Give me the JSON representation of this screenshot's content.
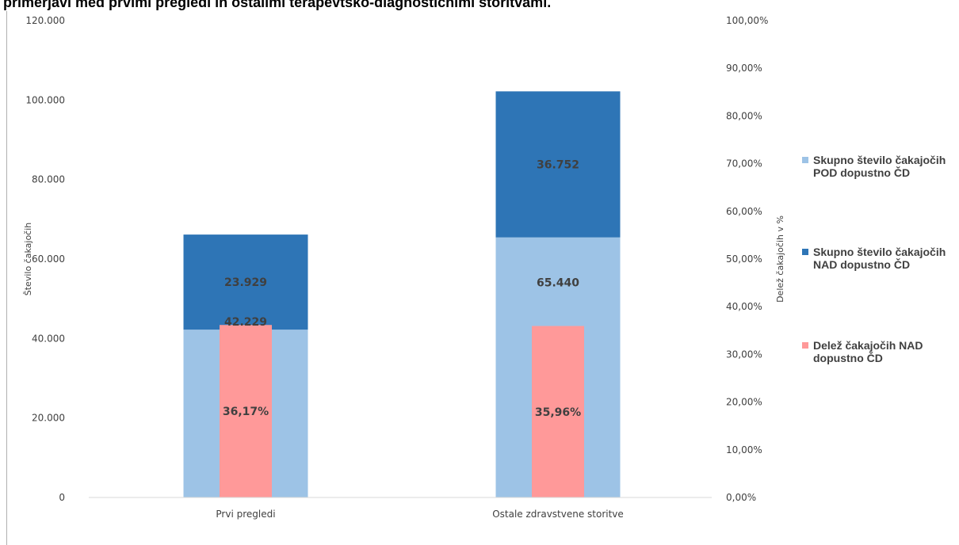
{
  "title": "primerjavi med prvimi pregledi in ostalimi terapevtsko-diagnostičnimi storitvami.",
  "chart_data": {
    "type": "bar",
    "stacked": true,
    "categories": [
      "Prvi pregledi",
      "Ostale zdravstvene storitve"
    ],
    "ylabel": "Število čakajočih",
    "y2label": "Delež čakajočih v %",
    "ylim": [
      0,
      120000
    ],
    "y2lim": [
      0,
      1
    ],
    "yticks": [
      "0",
      "20.000",
      "40.000",
      "60.000",
      "80.000",
      "100.000",
      "120.000"
    ],
    "y2ticks": [
      "0,00%",
      "10,00%",
      "20,00%",
      "30,00%",
      "40,00%",
      "50,00%",
      "60,00%",
      "70,00%",
      "80,00%",
      "90,00%",
      "100,00%"
    ],
    "grid": false,
    "legend_position": "right",
    "series": [
      {
        "name": "Skupno število čakajočih\nPOD dopustno ČD",
        "axis": "left",
        "color": "#9dc3e6",
        "values": [
          42229,
          65440
        ],
        "labels": [
          "42.229",
          "65.440"
        ]
      },
      {
        "name": "Skupno število čakajočih\nNAD dopustno ČD",
        "axis": "left",
        "color": "#2e75b6",
        "values": [
          23929,
          36752
        ],
        "labels": [
          "23.929",
          "36.752"
        ]
      },
      {
        "name": "Delež čakajočih NAD\ndopustno ČD",
        "axis": "right",
        "color": "#ff9999",
        "values": [
          0.3617,
          0.3596
        ],
        "labels": [
          "36,17%",
          "35,96%"
        ]
      }
    ]
  }
}
